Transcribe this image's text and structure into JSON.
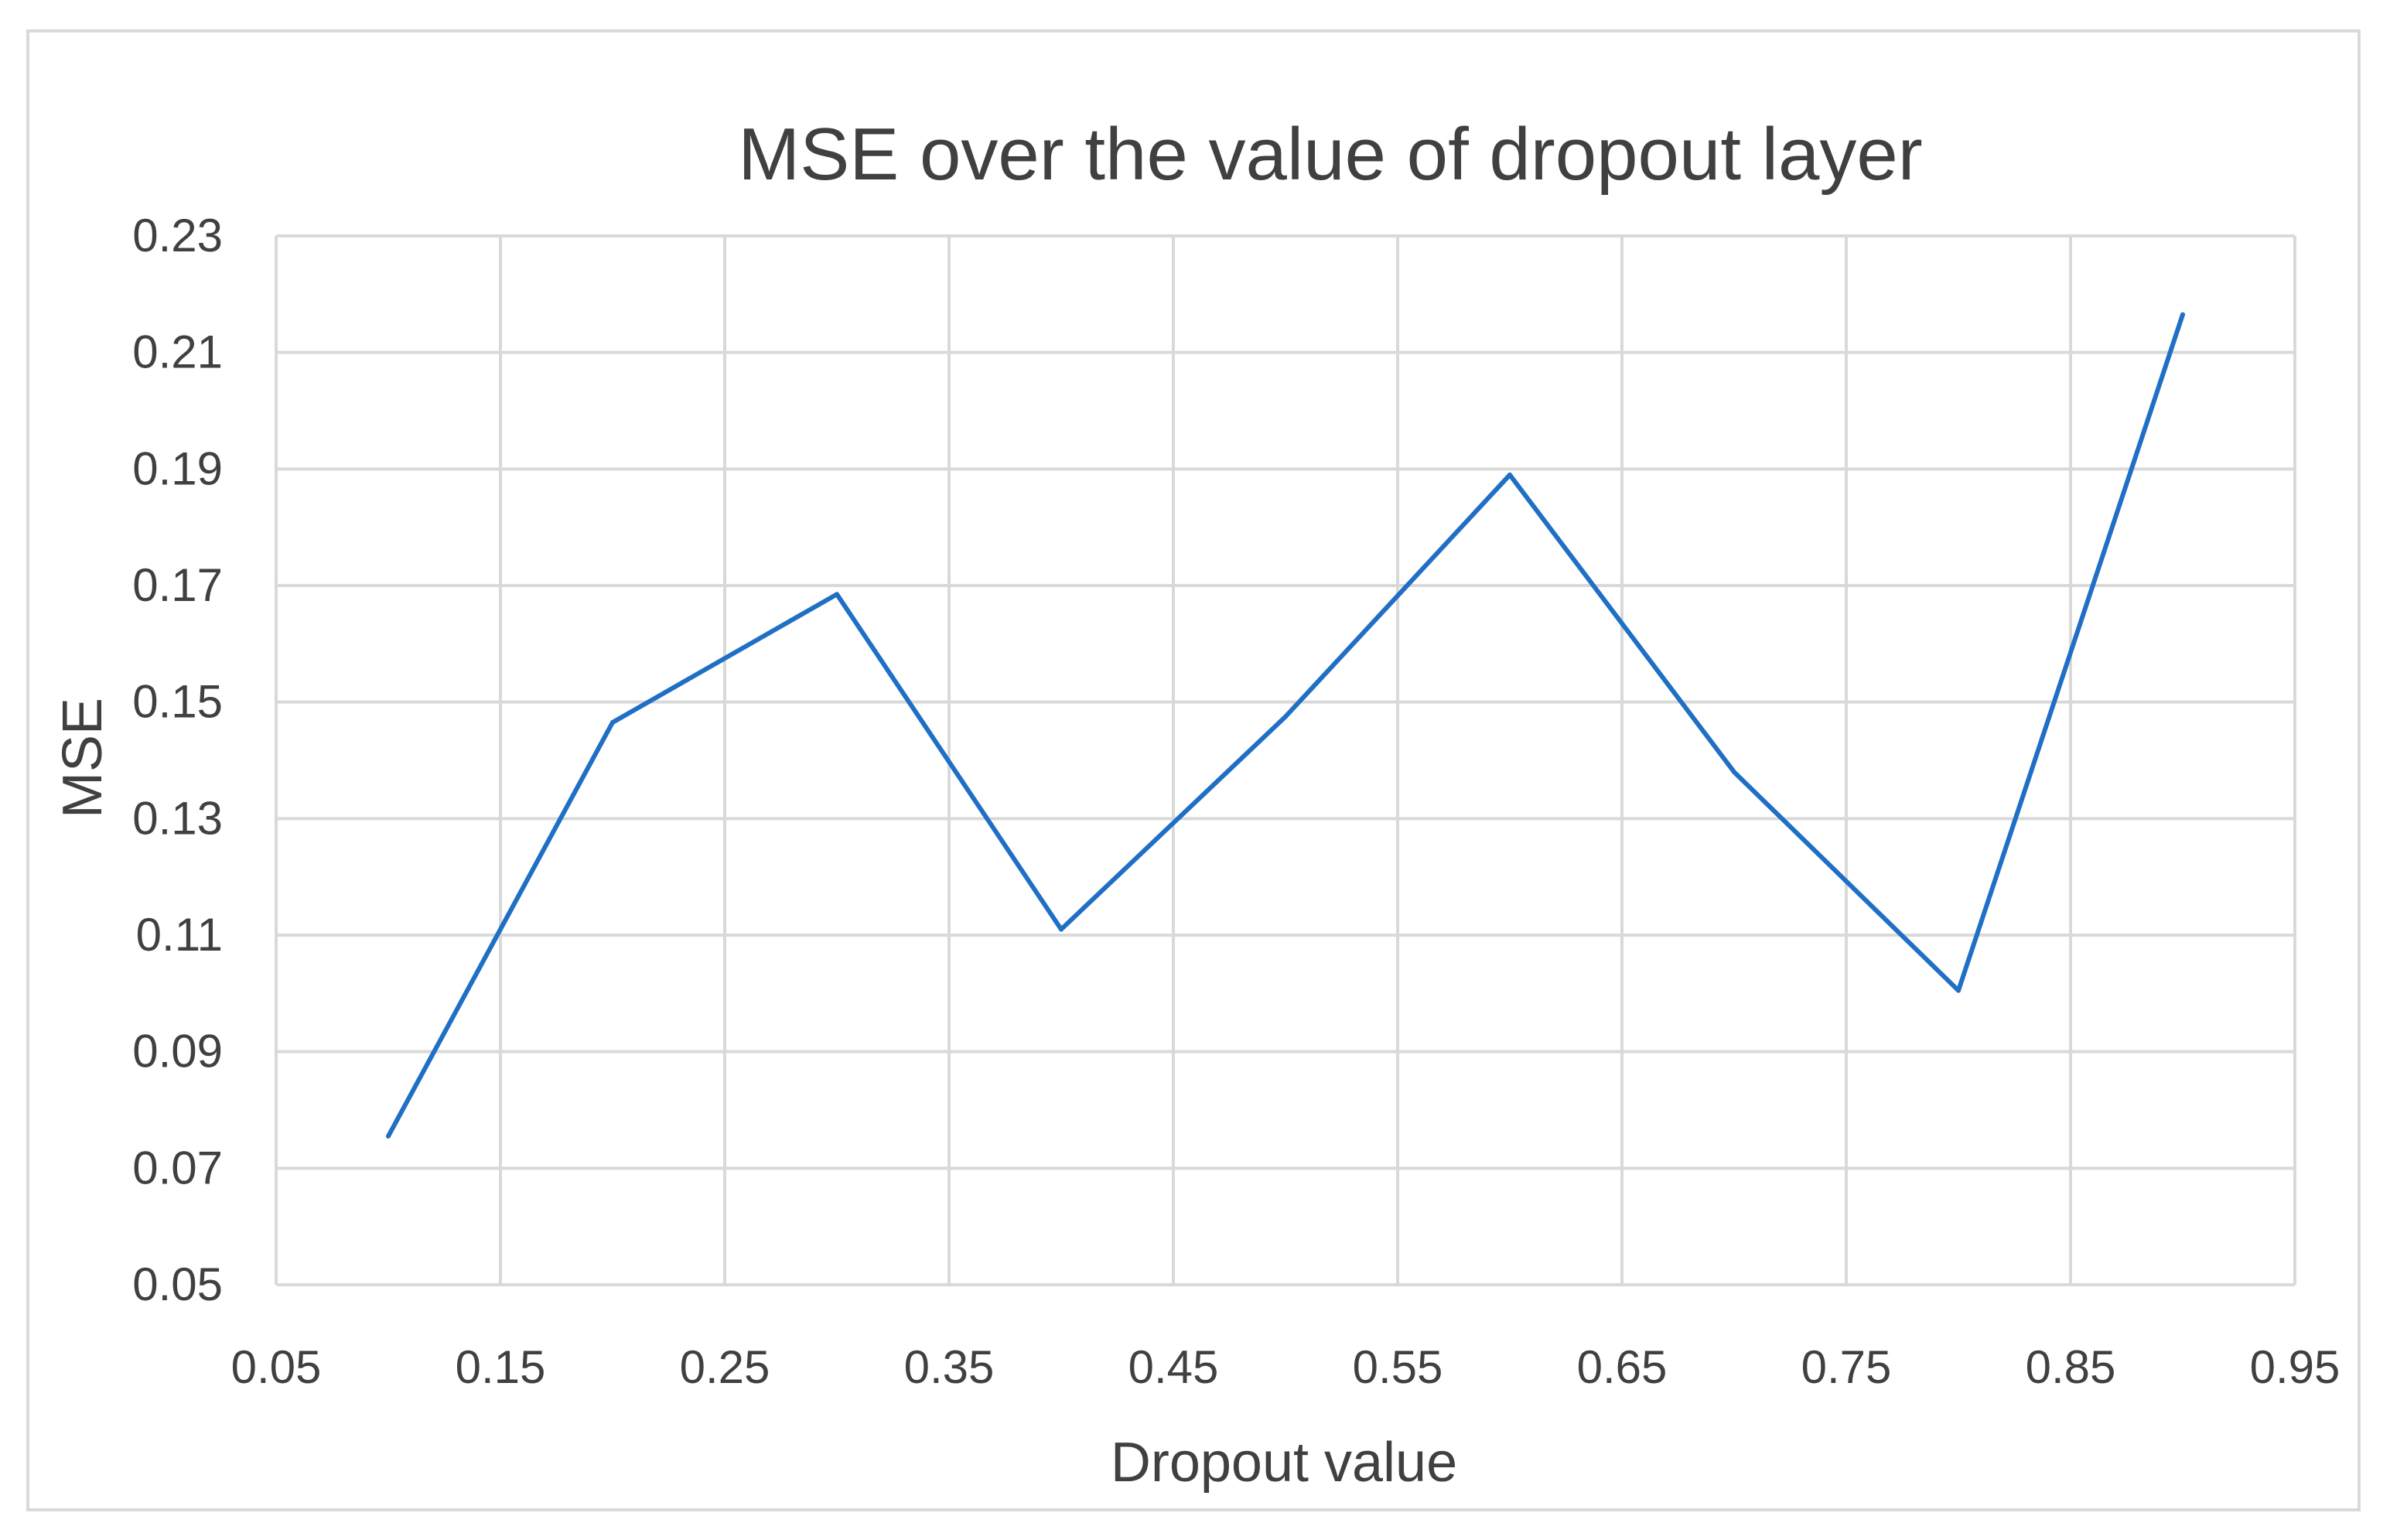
{
  "chart_data": {
    "type": "line",
    "title": "MSE over the value of dropout layer",
    "xlabel": "Dropout value",
    "ylabel": "MSE",
    "xlim": [
      0.05,
      0.95
    ],
    "ylim": [
      0.05,
      0.23
    ],
    "x_ticks": [
      "0.05",
      "0.15",
      "0.25",
      "0.35",
      "0.45",
      "0.55",
      "0.65",
      "0.75",
      "0.85",
      "0.95"
    ],
    "y_ticks": [
      "0.23",
      "0.21",
      "0.19",
      "0.17",
      "0.15",
      "0.13",
      "0.11",
      "0.09",
      "0.07",
      "0.05"
    ],
    "grid": true,
    "legend": false,
    "series": [
      {
        "color": "#1f6fc5",
        "x": [
          0.1,
          0.2,
          0.3,
          0.4,
          0.5,
          0.6,
          0.7,
          0.8,
          0.9
        ],
        "y": [
          0.0755,
          0.1465,
          0.1685,
          0.111,
          0.1475,
          0.189,
          0.138,
          0.1005,
          0.2165
        ]
      }
    ]
  }
}
